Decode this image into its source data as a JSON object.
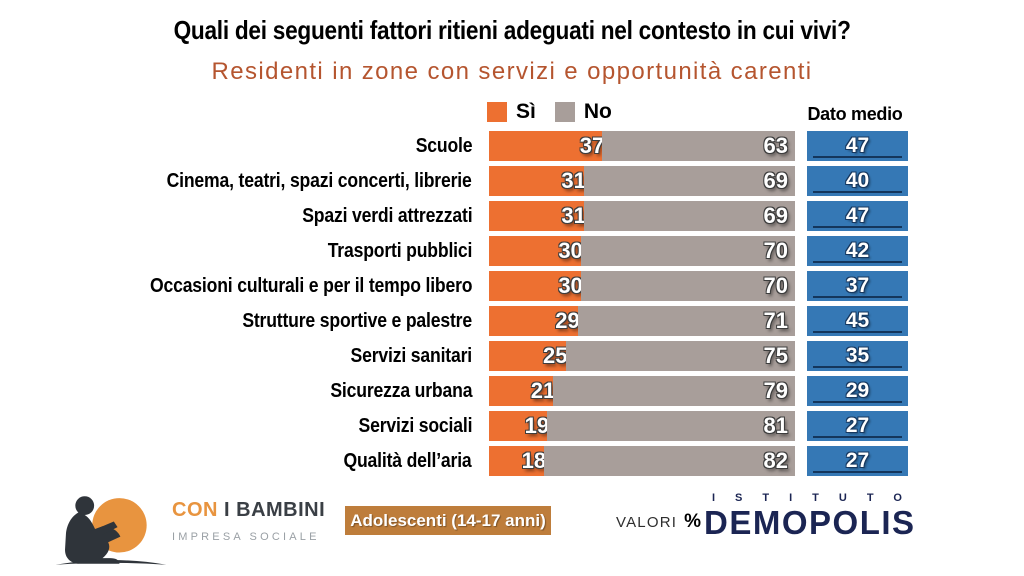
{
  "header": {
    "title": "Quali dei seguenti fattori ritieni adeguati nel contesto in cui vivi?",
    "subtitle": "Residenti in zone con servizi e opportunità carenti"
  },
  "legend": {
    "si_label": "Sì",
    "no_label": "No",
    "dato_medio_label": "Dato medio"
  },
  "chart_data": {
    "type": "bar",
    "orientation": "horizontal",
    "stacked": true,
    "xlim": [
      0,
      100
    ],
    "title": "Quali dei seguenti fattori ritieni adeguati nel contesto in cui vivi?",
    "subtitle": "Residenti in zone con servizi e opportunità carenti",
    "value_unit": "%",
    "categories": [
      "Scuole",
      "Cinema, teatri, spazi concerti, librerie",
      "Spazi verdi attrezzati",
      "Trasporti pubblici",
      "Occasioni culturali e per il tempo libero",
      "Strutture sportive e palestre",
      "Servizi sanitari",
      "Sicurezza urbana",
      "Servizi sociali",
      "Qualità dell’aria"
    ],
    "series": [
      {
        "name": "Sì",
        "color": "#ED7031",
        "values": [
          37,
          31,
          31,
          30,
          30,
          29,
          25,
          21,
          19,
          18
        ]
      },
      {
        "name": "No",
        "color": "#A89E9A",
        "values": [
          63,
          69,
          69,
          70,
          70,
          71,
          75,
          79,
          81,
          82
        ]
      }
    ],
    "dato_medio": {
      "label": "Dato medio",
      "color": "#3578B5",
      "values": [
        47,
        40,
        47,
        42,
        37,
        45,
        35,
        29,
        27,
        27
      ]
    }
  },
  "footer": {
    "logo_con": "CON",
    "logo_rest": "I BAMBINI",
    "logo_sub": "IMPRESA SOCIALE",
    "badge": "Adolescenti (14-17 anni)",
    "valori_label": "VALORI",
    "valori_pct": "%",
    "istituto": "ISTITUTO",
    "demopolis_pre": "DEM",
    "demopolis_o": "O",
    "demopolis_post": "POLIS"
  },
  "colors": {
    "si": "#ED7031",
    "no": "#A89E9A",
    "medio": "#3578B5",
    "medio_underline": "#14365C",
    "subtitle": "#B5552F",
    "badge": "#BE7D3B",
    "navy": "#1B2553",
    "logo_orange": "#E8943F"
  }
}
